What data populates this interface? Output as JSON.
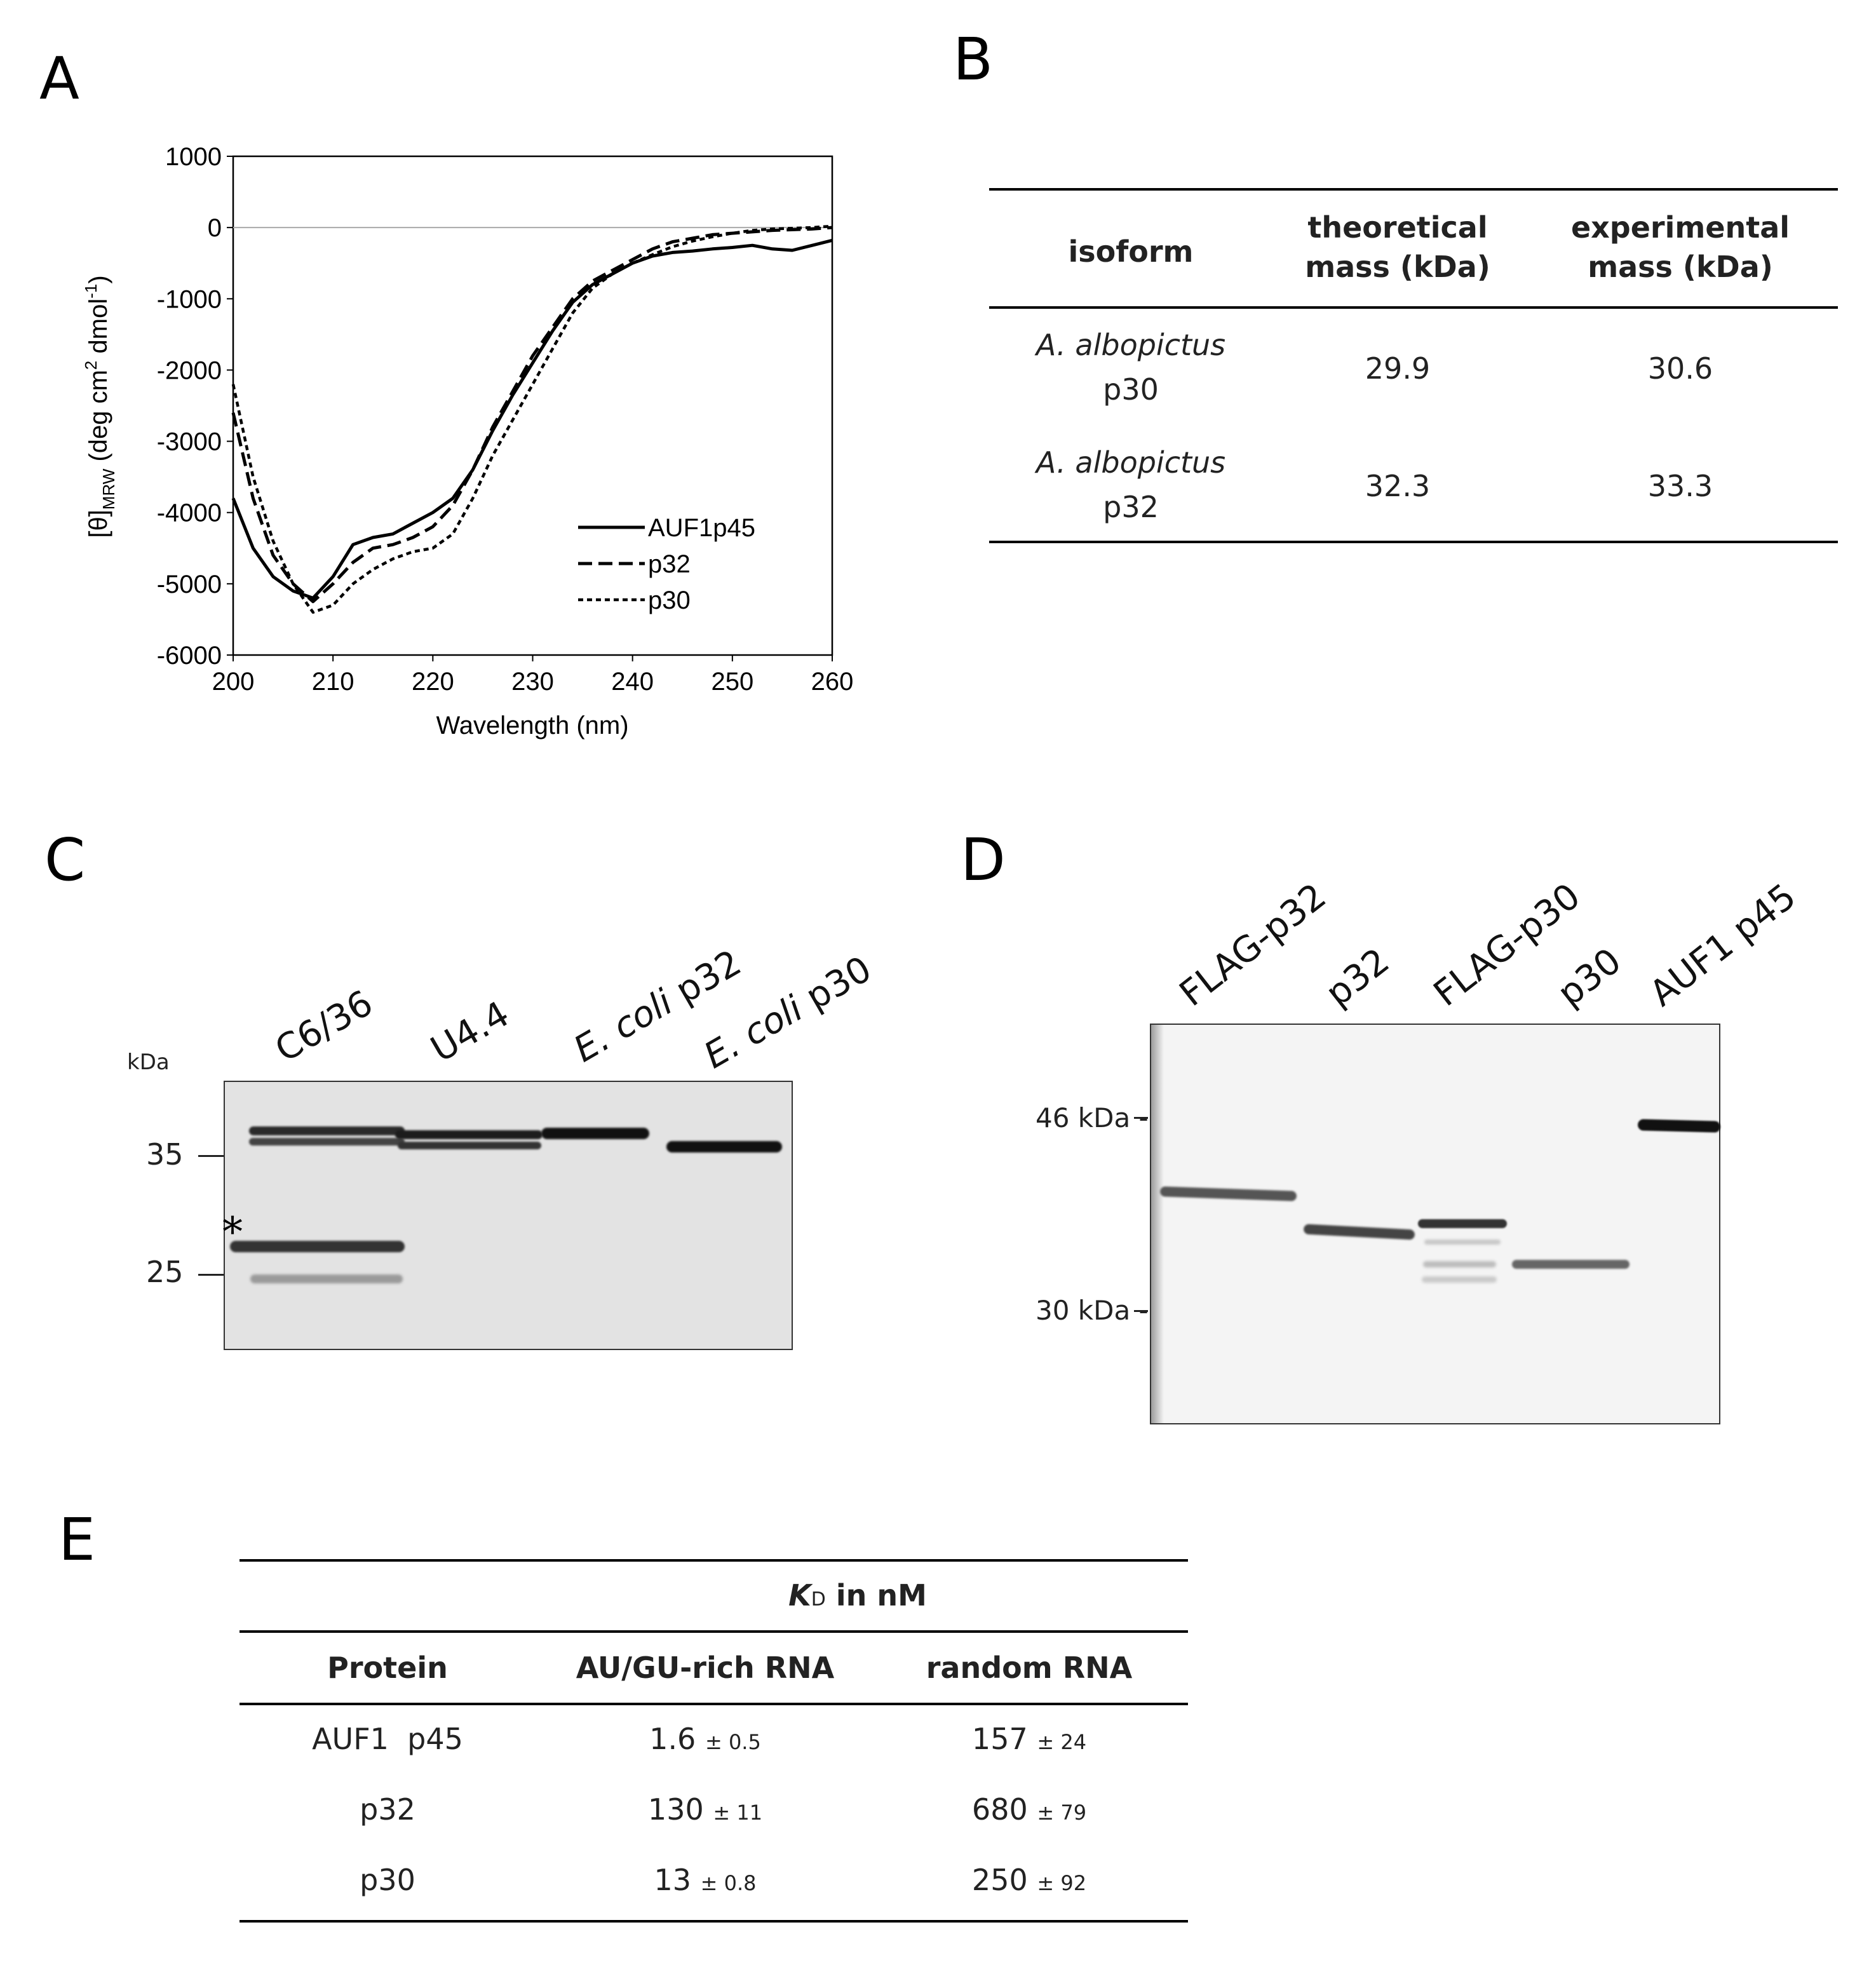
{
  "panels": {
    "A": "A",
    "B": "B",
    "C": "C",
    "D": "D",
    "E": "E"
  },
  "chart_data": {
    "type": "line",
    "title": "",
    "xlabel": "Wavelength (nm)",
    "ylabel_main": "[θ]",
    "ylabel_sub": "MRW",
    "ylabel_rest": " (deg cm",
    "ylabel_sup1": "2",
    "ylabel_mid": " dmol",
    "ylabel_sup2": "-1",
    "ylabel_end": ")",
    "xlim": [
      200,
      260
    ],
    "ylim": [
      -6000,
      1000
    ],
    "xticks": [
      200,
      210,
      220,
      230,
      240,
      250,
      260
    ],
    "yticks": [
      1000,
      0,
      -1000,
      -2000,
      -3000,
      -4000,
      -5000,
      -6000
    ],
    "legend_position": "bottom-right",
    "series": [
      {
        "name": "AUF1p45",
        "style": "solid",
        "x": [
          200,
          202,
          204,
          206,
          208,
          210,
          212,
          214,
          216,
          218,
          220,
          222,
          224,
          226,
          228,
          230,
          232,
          234,
          236,
          238,
          240,
          242,
          244,
          246,
          248,
          250,
          252,
          254,
          256,
          258,
          260
        ],
        "y": [
          -3800,
          -4500,
          -4900,
          -5100,
          -5200,
          -4900,
          -4450,
          -4350,
          -4300,
          -4150,
          -4000,
          -3800,
          -3400,
          -2850,
          -2350,
          -1900,
          -1450,
          -1050,
          -800,
          -650,
          -500,
          -400,
          -350,
          -330,
          -300,
          -280,
          -250,
          -300,
          -320,
          -250,
          -180
        ]
      },
      {
        "name": "p32",
        "style": "dashed",
        "x": [
          200,
          202,
          204,
          206,
          208,
          210,
          212,
          214,
          216,
          218,
          220,
          222,
          224,
          226,
          228,
          230,
          232,
          234,
          236,
          238,
          240,
          242,
          244,
          246,
          248,
          250,
          252,
          254,
          256,
          258,
          260
        ],
        "y": [
          -2600,
          -3800,
          -4600,
          -5000,
          -5250,
          -5000,
          -4700,
          -4500,
          -4450,
          -4350,
          -4200,
          -3900,
          -3400,
          -2800,
          -2300,
          -1800,
          -1400,
          -1000,
          -750,
          -600,
          -450,
          -300,
          -200,
          -150,
          -100,
          -80,
          -60,
          -40,
          -30,
          -20,
          0
        ]
      },
      {
        "name": "p30",
        "style": "dotted",
        "x": [
          200,
          202,
          204,
          206,
          208,
          210,
          212,
          214,
          216,
          218,
          220,
          222,
          224,
          226,
          228,
          230,
          232,
          234,
          236,
          238,
          240,
          242,
          244,
          246,
          248,
          250,
          252,
          254,
          256,
          258,
          260
        ],
        "y": [
          -2200,
          -3500,
          -4400,
          -5000,
          -5400,
          -5300,
          -5000,
          -4800,
          -4650,
          -4550,
          -4500,
          -4300,
          -3800,
          -3200,
          -2700,
          -2200,
          -1700,
          -1200,
          -850,
          -650,
          -500,
          -380,
          -270,
          -190,
          -130,
          -80,
          -40,
          -20,
          -10,
          0,
          20
        ]
      }
    ]
  },
  "tableB": {
    "headers": [
      "isoform",
      "theoretical\nmass (kDa)",
      "experimental\nmass (kDa)"
    ],
    "rows": [
      {
        "species": "A. albopictus",
        "isoform": "p30",
        "theoretical": "29.9",
        "experimental": "30.6"
      },
      {
        "species": "A. albopictus",
        "isoform": "p32",
        "theoretical": "32.3",
        "experimental": "33.3"
      }
    ]
  },
  "gelC": {
    "unit": "kDa",
    "lanes": [
      {
        "label": "C6/36"
      },
      {
        "label": "U4.4"
      },
      {
        "label_italic": "E. coli",
        "label_rest": " p32"
      },
      {
        "label_italic": "E. coli",
        "label_rest": " p30"
      }
    ],
    "markers": [
      "35",
      "25"
    ],
    "asterisk": "*"
  },
  "gelD": {
    "lanes": [
      "FLAG-p32",
      "p32",
      "FLAG-p30",
      "p30",
      "AUF1 p45"
    ],
    "markers": [
      "46 kDa -",
      "30 kDa -"
    ]
  },
  "tableE": {
    "kd_label_main": "K",
    "kd_label_sub": "D",
    "kd_label_rest": " in nM",
    "headers": [
      "Protein",
      "AU/GU-rich RNA",
      "random RNA"
    ],
    "rows": [
      {
        "protein": "AUF1  p45",
        "au": "1.6",
        "au_err": "± 0.5",
        "rnd": "157",
        "rnd_err": "± 24"
      },
      {
        "protein": "p32",
        "au": "130",
        "au_err": "± 11",
        "rnd": "680",
        "rnd_err": "± 79"
      },
      {
        "protein": "p30",
        "au": "13",
        "au_err": "± 0.8",
        "rnd": "250",
        "rnd_err": "± 92"
      }
    ]
  }
}
